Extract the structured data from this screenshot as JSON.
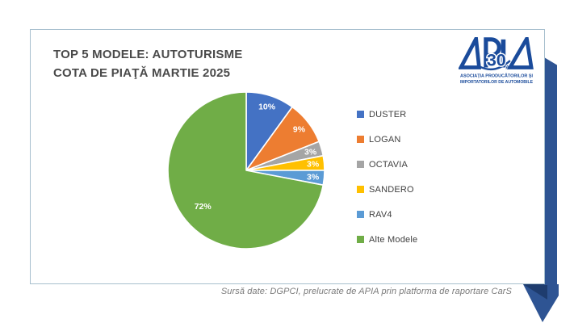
{
  "card": {
    "title_line1": "TOP 5 MODELE: AUTOTURISME",
    "title_line2": "COTA DE PIAŢĂ MARTIE 2025"
  },
  "logo": {
    "name": "APIA",
    "badge": "30",
    "badge_suffix": "ANI",
    "caption_line1": "ASOCIAŢIA  PRODUCĂTORILOR  ŞI",
    "caption_line2": "IMPORTATORILOR DE AUTOMOBILE"
  },
  "footer": {
    "source_note": "Sursă date: DGPCI, prelucrate de APIA prin platforma de raportare CarS"
  },
  "colors": {
    "logo_blue": "#1a4b9b",
    "ribbon": "#2e5493",
    "ribbon_fold": "#1e3c6e",
    "card_border": "#a7bfce",
    "title_text": "#4a4a4a",
    "legend_text": "#404040",
    "footer_text": "#7b7b7b",
    "slice_border": "#ffffff"
  },
  "chart_data": {
    "type": "pie",
    "title": "TOP 5 MODELE: AUTOTURISME COTA DE PIAŢĂ MARTIE 2025",
    "categories": [
      "DUSTER",
      "LOGAN",
      "OCTAVIA",
      "SANDERO",
      "RAV4",
      "Alte Modele"
    ],
    "values": [
      10,
      9,
      3,
      3,
      3,
      72
    ],
    "data_labels": [
      "10%",
      "9%",
      "3%",
      "3%",
      "3%",
      "72%"
    ],
    "colors": [
      "#4472C4",
      "#ED7D31",
      "#A5A5A5",
      "#FFC000",
      "#5B9BD5",
      "#70AD47"
    ],
    "start_angle_deg": 0,
    "direction": "clockwise",
    "legend_position": "right",
    "grid": false
  }
}
